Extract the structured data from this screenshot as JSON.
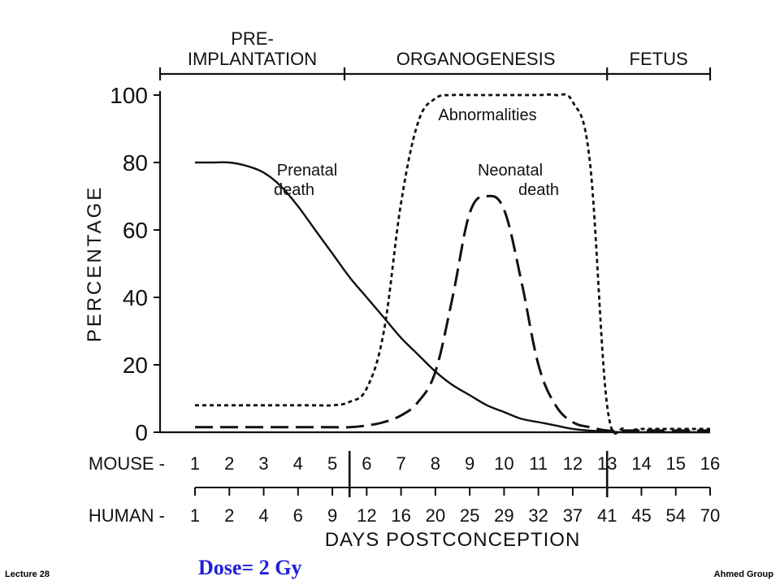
{
  "chart_data": {
    "type": "line",
    "stages": [
      "PRE-\nIMPLANTATION",
      "ORGANOGENESIS",
      "FETUS"
    ],
    "ylabel": "PERCENTAGE",
    "xlabel": "DAYS POSTCONCEPTION",
    "ylim": [
      0,
      100
    ],
    "yticks": [
      "0",
      "20",
      "40",
      "60",
      "80",
      "100"
    ],
    "mouse_label": "MOUSE",
    "human_label": "HUMAN",
    "mouse_days": [
      "1",
      "2",
      "3",
      "4",
      "5",
      "6",
      "7",
      "8",
      "9",
      "10",
      "11",
      "12",
      "13",
      "14",
      "15",
      "16"
    ],
    "human_days": [
      "1",
      "2",
      "4",
      "6",
      "9",
      "12",
      "16",
      "20",
      "25",
      "29",
      "32",
      "37",
      "41",
      "45",
      "54",
      "70"
    ],
    "x": [
      1,
      1.5,
      2,
      2.5,
      3,
      3.5,
      4,
      4.5,
      5,
      5.5,
      6,
      6.5,
      7,
      7.5,
      8,
      8.5,
      9,
      9.5,
      10,
      10.5,
      11,
      11.5,
      12,
      12.5,
      13,
      13.5,
      14,
      15,
      16
    ],
    "series": [
      {
        "name": "Prenatal death",
        "style": "solid",
        "values": [
          80,
          80,
          80,
          79,
          77,
          73,
          67,
          60,
          53,
          46,
          40,
          34,
          28,
          23,
          18,
          14,
          11,
          8,
          6,
          4,
          3,
          2,
          1,
          0.5,
          0.2,
          0,
          0,
          0,
          0
        ]
      },
      {
        "name": "Abnormalities",
        "style": "dotted",
        "values": [
          8,
          8,
          8,
          8,
          8,
          8,
          8,
          8,
          8,
          9,
          13,
          30,
          68,
          92,
          99,
          100,
          100,
          100,
          100,
          100,
          100,
          100,
          98,
          80,
          8,
          1,
          1,
          1,
          1
        ]
      },
      {
        "name": "Neonatal death",
        "style": "dashed",
        "values": [
          1.5,
          1.5,
          1.5,
          1.5,
          1.5,
          1.5,
          1.5,
          1.5,
          1.5,
          1.5,
          2,
          3,
          5,
          9,
          18,
          40,
          65,
          70,
          66,
          45,
          20,
          8,
          3,
          1.5,
          0.5,
          0.5,
          0.5,
          0.5,
          0.5
        ]
      }
    ],
    "labels": {
      "prenatal": [
        "Prenatal",
        "death"
      ],
      "abnormalities": "Abnormalities",
      "neonatal": [
        "Neonatal",
        "death"
      ]
    },
    "grid": false,
    "legend": "none (curves labeled inline)"
  },
  "caption": "Dose= 2 Gy",
  "footer": {
    "left": "Lecture 28",
    "right": "Ahmed Group"
  },
  "colors": {
    "ink": "#111111",
    "caption": "#2020d8",
    "background": "#ffffff"
  }
}
